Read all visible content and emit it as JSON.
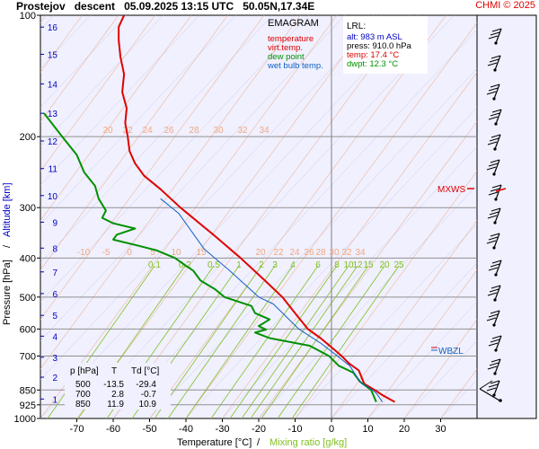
{
  "header": {
    "station": "Prostejov",
    "kind": "descent",
    "datetime": "05.09.2025 13:15 UTC",
    "coords": "50.05N,17.34E",
    "credit": "CHMI © 2025"
  },
  "legend": {
    "title": "EMAGRAM",
    "items": [
      {
        "label": "temperature",
        "color": "#e00000"
      },
      {
        "label": "virt.temp.",
        "color": "#e00000"
      },
      {
        "label": "dew point",
        "color": "#009000"
      },
      {
        "label": "wet bulb temp.",
        "color": "#1060c0"
      }
    ]
  },
  "lrl": {
    "title": "LRL:",
    "lines": [
      {
        "text": "alt: 983 m ASL",
        "color": "#0000c0"
      },
      {
        "text": "press: 910.0 hPa",
        "color": "#000000"
      },
      {
        "text": "temp: 17.4 °C",
        "color": "#e00000"
      },
      {
        "text": "dwpt: 12.3 °C",
        "color": "#009000"
      }
    ]
  },
  "levels_table": {
    "headers": [
      "p [hPa]",
      "T",
      "Td [°C]"
    ],
    "rows": [
      [
        "500",
        "-13.5",
        "-29.4"
      ],
      [
        "700",
        "2.8",
        "-0.7"
      ],
      [
        "850",
        "11.9",
        "10.9"
      ]
    ]
  },
  "axes": {
    "xlabel_temp": "Temperature [°C]",
    "xlabel_sep": "/",
    "xlabel_mix": "Mixing ratio [g/kg]",
    "ylabel_p": "Pressure [hPa]",
    "ylabel_sep": "/",
    "ylabel_alt": "Altitude [km]"
  },
  "markers": {
    "mxws": "MXWS",
    "wbzl": "WBZL"
  },
  "colors": {
    "temperature": "#e00000",
    "dewpoint": "#009000",
    "wetbulb": "#1060c0",
    "altitude_ticks": "#0000c0",
    "mixing_ratio": "#80c020",
    "theta_lines": "#f0a880",
    "adiabat_lines": "#f0a880",
    "background": "#f0f0ff",
    "wind_panel": "#f0f0ff"
  },
  "chart_data": {
    "type": "line",
    "title": "",
    "xlabel": "Temperature [°C]",
    "ylabel": "Pressure [hPa]",
    "xlim": [
      -80,
      40
    ],
    "ylim": [
      1000,
      100
    ],
    "yscale": "log",
    "grid": true,
    "x_ticks": [
      -70,
      -60,
      -50,
      -40,
      -30,
      -20,
      -10,
      0,
      10,
      20,
      30
    ],
    "y_ticks": [
      100,
      200,
      300,
      400,
      500,
      600,
      700,
      850,
      925,
      1000
    ],
    "altitude_ticks_km": [
      {
        "km": 16,
        "p": 107
      },
      {
        "km": 15,
        "p": 125
      },
      {
        "km": 14,
        "p": 148
      },
      {
        "km": 13,
        "p": 175
      },
      {
        "km": 12,
        "p": 205
      },
      {
        "km": 11,
        "p": 240
      },
      {
        "km": 10,
        "p": 280
      },
      {
        "km": 9,
        "p": 326
      },
      {
        "km": 8,
        "p": 378
      },
      {
        "km": 7,
        "p": 433
      },
      {
        "km": 6,
        "p": 490
      },
      {
        "km": 5,
        "p": 555
      },
      {
        "km": 4,
        "p": 625
      },
      {
        "km": 3,
        "p": 705
      },
      {
        "km": 2,
        "p": 790
      },
      {
        "km": 1,
        "p": 895
      }
    ],
    "mixing_ratio_labels": [
      "0.1",
      "0.2",
      "0.5",
      "1",
      "2",
      "3",
      "4",
      "6",
      "8",
      "10",
      "12",
      "15",
      "20",
      "25"
    ],
    "theta_labels_upper": [
      "20",
      "22",
      "24",
      "26",
      "28",
      "30",
      "32",
      "34"
    ],
    "theta_labels_lower": [
      "-10",
      "-5",
      "0",
      "5",
      "10",
      "15",
      "20",
      "22",
      "24",
      "26",
      "28",
      "30",
      "32",
      "34"
    ],
    "series": [
      {
        "name": "temperature",
        "points": [
          [
            17.4,
            910
          ],
          [
            14,
            875
          ],
          [
            11.9,
            850
          ],
          [
            9,
            820
          ],
          [
            7.5,
            760
          ],
          [
            4.8,
            730
          ],
          [
            2.8,
            700
          ],
          [
            -0.5,
            660
          ],
          [
            -3,
            632
          ],
          [
            -6.5,
            600
          ],
          [
            -10,
            548
          ],
          [
            -13.5,
            500
          ],
          [
            -18.5,
            453
          ],
          [
            -25,
            400
          ],
          [
            -32.5,
            350
          ],
          [
            -41.5,
            300
          ],
          [
            -47,
            270
          ],
          [
            -51.5,
            250
          ],
          [
            -54,
            233
          ],
          [
            -55.5,
            217
          ],
          [
            -56,
            200
          ],
          [
            -56.7,
            185
          ],
          [
            -56.3,
            170
          ],
          [
            -57.5,
            155
          ],
          [
            -57,
            140
          ],
          [
            -58,
            127
          ],
          [
            -58.5,
            115
          ],
          [
            -58.5,
            107
          ],
          [
            -57,
            100
          ]
        ]
      },
      {
        "name": "dew point",
        "points": [
          [
            12.3,
            910
          ],
          [
            11.5,
            875
          ],
          [
            10.9,
            850
          ],
          [
            7.8,
            810
          ],
          [
            6,
            770
          ],
          [
            2,
            740
          ],
          [
            -0.7,
            700
          ],
          [
            -6,
            660
          ],
          [
            -17,
            632
          ],
          [
            -21,
            612
          ],
          [
            -18,
            602
          ],
          [
            -20,
            590
          ],
          [
            -17,
            568
          ],
          [
            -21,
            548
          ],
          [
            -22,
            526
          ],
          [
            -29.4,
            500
          ],
          [
            -32,
            478
          ],
          [
            -36,
            455
          ],
          [
            -38,
            430
          ],
          [
            -40,
            418
          ],
          [
            -43,
            400
          ],
          [
            -48,
            383
          ],
          [
            -53,
            373
          ],
          [
            -60,
            360
          ],
          [
            -59,
            350
          ],
          [
            -54,
            338
          ],
          [
            -60,
            328
          ],
          [
            -63,
            318
          ],
          [
            -62,
            305
          ],
          [
            -64,
            285
          ],
          [
            -65,
            265
          ],
          [
            -68,
            245
          ],
          [
            -70,
            222
          ],
          [
            -74,
            200
          ],
          [
            -79,
            175
          ]
        ]
      },
      {
        "name": "wet bulb temp.",
        "points": [
          [
            14,
            910
          ],
          [
            12.5,
            870
          ],
          [
            11.3,
            850
          ],
          [
            8,
            815
          ],
          [
            5,
            740
          ],
          [
            1.6,
            700
          ],
          [
            -3,
            650
          ],
          [
            -9,
            600
          ],
          [
            -16,
            520
          ],
          [
            -20,
            500
          ],
          [
            -28,
            430
          ],
          [
            -35,
            380
          ],
          [
            -42,
            310
          ],
          [
            -47,
            285
          ]
        ]
      }
    ]
  }
}
